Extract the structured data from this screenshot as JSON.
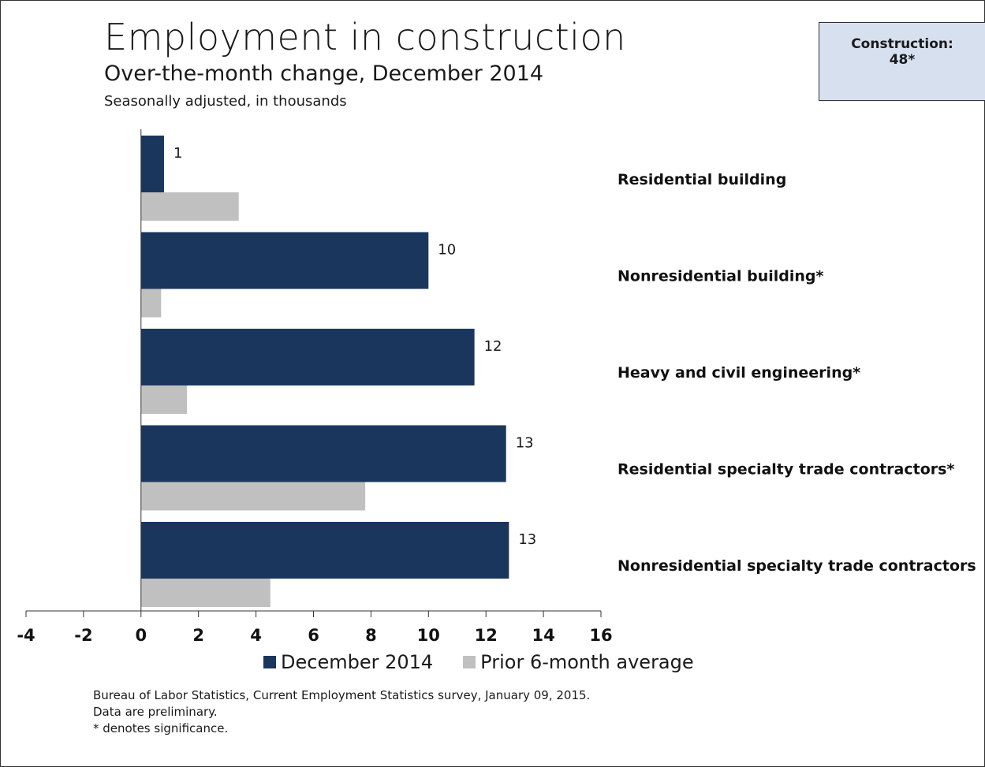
{
  "header": {
    "title": "Employment in construction",
    "subtitle": "Over-the-month change, December 2014",
    "note": "Seasonally adjusted, in thousands"
  },
  "callout": {
    "label": "Construction:",
    "value": "48*"
  },
  "legend": {
    "series_1": "December 2014",
    "series_2": "Prior 6-month average"
  },
  "footer": {
    "line_1": "Bureau of Labor Statistics, Current Employment Statistics survey, January 09, 2015.",
    "line_2": "Data are preliminary.",
    "line_3": "* denotes significance."
  },
  "colors": {
    "series_1": "#1a365d",
    "series_2": "#c0c0c0",
    "callout_bg": "#d6e0ef"
  },
  "chart_data": {
    "type": "bar",
    "orientation": "horizontal",
    "title": "Employment in construction",
    "subtitle": "Over-the-month change, December 2014",
    "categories": [
      "Residential building",
      "Nonresidential building*",
      "Heavy and civil engineering*",
      "Residential specialty trade contractors*",
      "Nonresidential specialty trade contractors"
    ],
    "series": [
      {
        "name": "December 2014",
        "values": [
          0.8,
          10,
          11.6,
          12.7,
          12.8
        ],
        "labels": [
          "1",
          "10",
          "12",
          "13",
          "13"
        ]
      },
      {
        "name": "Prior 6-month average",
        "values": [
          3.4,
          0.7,
          1.6,
          7.8,
          4.5
        ]
      }
    ],
    "xlim": [
      -4,
      16
    ],
    "xticks": [
      "-4",
      "-2",
      "0",
      "2",
      "4",
      "6",
      "8",
      "10",
      "12",
      "14",
      "16"
    ],
    "grid": false,
    "legend_position": "bottom"
  }
}
